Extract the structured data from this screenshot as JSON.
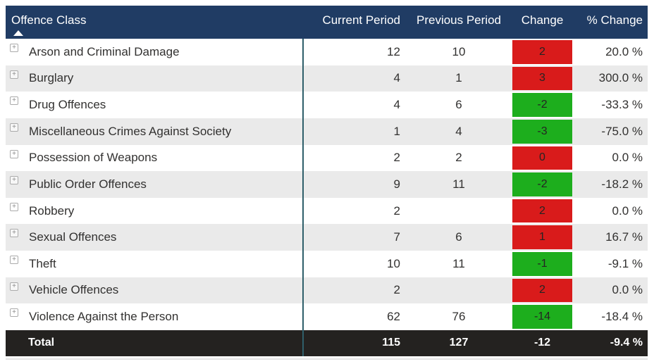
{
  "theme": {
    "header_bg": "#203C64",
    "header_text": "#FFFFFF",
    "row_bg": "#FFFFFF",
    "row_alt_bg": "#EAEAEA",
    "body_text": "#323130",
    "increase_color": "#D91B1B",
    "decrease_color": "#1DAE1D",
    "change_text": "#252423",
    "total_bg": "#242220",
    "total_text": "#FFFFFF",
    "divider_color": "#2F5F6A"
  },
  "ui": {
    "expand_glyph": "+",
    "sort_column": "Offence Class",
    "sort_direction": "ascending"
  },
  "chart_data": {
    "type": "table",
    "columns": [
      "Offence Class",
      "Current Period",
      "Previous Period",
      "Change",
      "% Change"
    ],
    "sort": {
      "column": "Offence Class",
      "direction": "ascending"
    },
    "rows": [
      {
        "offence_class": "Arson and Criminal Damage",
        "current": "12",
        "previous": "10",
        "change": "2",
        "change_direction": "increase",
        "pct_change": "20.0 %"
      },
      {
        "offence_class": "Burglary",
        "current": "4",
        "previous": "1",
        "change": "3",
        "change_direction": "increase",
        "pct_change": "300.0 %"
      },
      {
        "offence_class": "Drug Offences",
        "current": "4",
        "previous": "6",
        "change": "-2",
        "change_direction": "decrease",
        "pct_change": "-33.3 %"
      },
      {
        "offence_class": "Miscellaneous Crimes Against Society",
        "current": "1",
        "previous": "4",
        "change": "-3",
        "change_direction": "decrease",
        "pct_change": "-75.0 %"
      },
      {
        "offence_class": "Possession of Weapons",
        "current": "2",
        "previous": "2",
        "change": "0",
        "change_direction": "increase",
        "pct_change": "0.0 %"
      },
      {
        "offence_class": "Public Order Offences",
        "current": "9",
        "previous": "11",
        "change": "-2",
        "change_direction": "decrease",
        "pct_change": "-18.2 %"
      },
      {
        "offence_class": "Robbery",
        "current": "2",
        "previous": "",
        "change": "2",
        "change_direction": "increase",
        "pct_change": "0.0 %"
      },
      {
        "offence_class": "Sexual Offences",
        "current": "7",
        "previous": "6",
        "change": "1",
        "change_direction": "increase",
        "pct_change": "16.7 %"
      },
      {
        "offence_class": "Theft",
        "current": "10",
        "previous": "11",
        "change": "-1",
        "change_direction": "decrease",
        "pct_change": "-9.1 %"
      },
      {
        "offence_class": "Vehicle Offences",
        "current": "2",
        "previous": "",
        "change": "2",
        "change_direction": "increase",
        "pct_change": "0.0 %"
      },
      {
        "offence_class": "Violence Against the Person",
        "current": "62",
        "previous": "76",
        "change": "-14",
        "change_direction": "decrease",
        "pct_change": "-18.4 %"
      }
    ],
    "total": {
      "label": "Total",
      "current": "115",
      "previous": "127",
      "change": "-12",
      "pct_change": "-9.4 %"
    }
  }
}
